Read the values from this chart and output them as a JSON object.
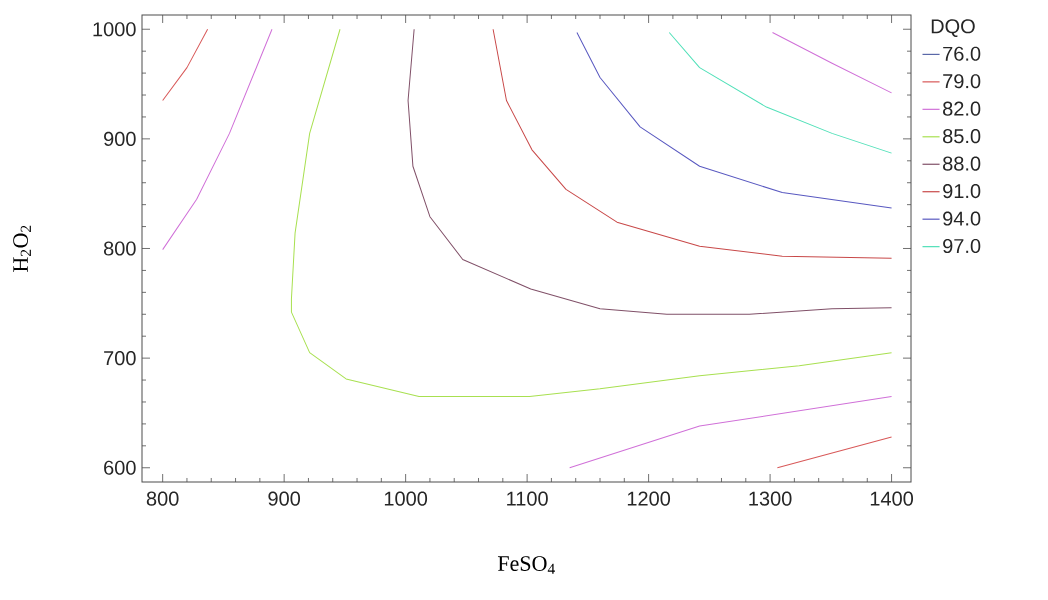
{
  "chart_data": {
    "type": "line",
    "xlabel": "FeSO$_{4}$",
    "ylabel": "H$_{2}$O$_{2}$",
    "legend_title": "DQO",
    "xlim": [
      783,
      1416
    ],
    "ylim": [
      587,
      1013
    ],
    "xticks": [
      800,
      900,
      1000,
      1100,
      1200,
      1300,
      1400
    ],
    "yticks": [
      600,
      700,
      800,
      900,
      1000
    ],
    "grid": false,
    "legend": "right",
    "line_style": "solid",
    "marker": "none",
    "series": [
      {
        "name": "76.0",
        "color": "#5a68a8"
      },
      {
        "name": "79.0",
        "color": "#d85858",
        "x": [
          800,
          820,
          837,
          null,
          1306,
          1400
        ],
        "values": [
          935,
          965,
          1000,
          null,
          600,
          628
        ]
      },
      {
        "name": "82.0",
        "color": "#d070d8",
        "x": [
          800,
          828,
          855,
          890,
          null,
          1135,
          1242,
          1400,
          null,
          1302,
          1351,
          1400
        ],
        "values": [
          799,
          845,
          905,
          1000,
          null,
          600,
          638,
          665,
          null,
          997,
          969,
          942
        ]
      },
      {
        "name": "85.0",
        "color": "#a8e050",
        "x": [
          946,
          921,
          909,
          906,
          906,
          921,
          951,
          1011,
          1047,
          1102,
          1160,
          1242,
          1324,
          1400
        ],
        "values": [
          1000,
          905,
          814,
          754,
          742,
          705,
          681,
          665,
          665,
          665,
          672,
          684,
          693,
          705
        ]
      },
      {
        "name": "88.0",
        "color": "#805068",
        "x": [
          1007,
          1002,
          1006,
          1020,
          1047,
          1103,
          1160,
          1215,
          1283,
          1351,
          1400
        ],
        "values": [
          1000,
          935,
          875,
          829,
          790,
          763,
          745,
          740,
          740,
          745,
          746
        ]
      },
      {
        "name": "91.0",
        "color": "#c84848",
        "x": [
          1072,
          1083,
          1104,
          1132,
          1174,
          1242,
          1310,
          1400
        ],
        "values": [
          1000,
          935,
          890,
          854,
          824,
          802,
          793,
          791
        ]
      },
      {
        "name": "94.0",
        "color": "#5858c0",
        "x": [
          1141,
          1160,
          1193,
          1242,
          1310,
          1400
        ],
        "values": [
          997,
          956,
          911,
          875,
          851,
          837
        ]
      },
      {
        "name": "97.0",
        "color": "#50e0b8",
        "x": [
          1217,
          1242,
          1297,
          1351,
          1400
        ],
        "values": [
          997,
          965,
          929,
          905,
          887
        ]
      }
    ]
  }
}
